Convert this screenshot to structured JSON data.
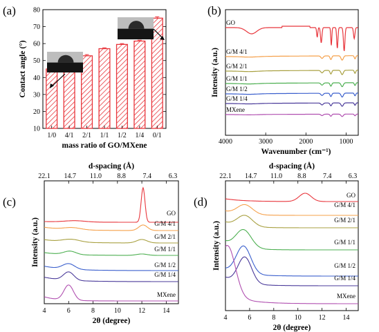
{
  "panels": {
    "a": {
      "label": "(a)"
    },
    "b": {
      "label": "(b)"
    },
    "c": {
      "label": "(c)"
    },
    "d": {
      "label": "(d)"
    }
  },
  "chart_data": [
    {
      "id": "a",
      "type": "bar",
      "categories": [
        "1/0",
        "4/1",
        "2/1",
        "1/1",
        "1/2",
        "1/4",
        "0/1"
      ],
      "values": [
        45.0,
        50.0,
        52.8,
        57.0,
        59.5,
        61.5,
        75.0
      ],
      "errors": [
        0.6,
        0.6,
        0.7,
        0.5,
        0.5,
        0.5,
        0.8
      ],
      "xlabel": "mass ratio of GO/MXene",
      "ylabel": "Contact angle (°)",
      "ylim": [
        10,
        80
      ],
      "yticks": [
        "10",
        "20",
        "30",
        "40",
        "50",
        "60",
        "70",
        "80"
      ],
      "bar_color": "#e8353b",
      "hatch": "diagonal"
    },
    {
      "id": "b",
      "type": "line",
      "xlabel": "Wavenumber (cm⁻¹)",
      "ylabel": "Intensity (a.u.)",
      "xlim": [
        4000,
        700
      ],
      "xticks": [
        "4000",
        "3000",
        "2000",
        "1000"
      ],
      "series": [
        {
          "name": "GO",
          "color": "#e8353b"
        },
        {
          "name": "G/M 4/1",
          "color": "#f5a04a"
        },
        {
          "name": "G/M 2/1",
          "color": "#a8a040"
        },
        {
          "name": "G/M 1/1",
          "color": "#4caf50"
        },
        {
          "name": "G/M 1/2",
          "color": "#3a5fcd"
        },
        {
          "name": "G/M 1/4",
          "color": "#4a3a9a"
        },
        {
          "name": "MXene",
          "color": "#b04fb0"
        }
      ]
    },
    {
      "id": "c",
      "type": "line",
      "xlabel": "2θ (degree)",
      "ylabel": "Intensity (a.u.)",
      "top_axis_label": "d-spacing (Å)",
      "top_ticks": [
        "22.1",
        "14.7",
        "11.0",
        "8.8",
        "7.4",
        "6.3"
      ],
      "xlim": [
        4,
        15
      ],
      "xticks": [
        "4",
        "6",
        "8",
        "10",
        "12",
        "14"
      ],
      "series": [
        {
          "name": "GO",
          "color": "#e8353b",
          "peak": 12.1
        },
        {
          "name": "G/M 4/1",
          "color": "#f5a04a",
          "peak": 12.1
        },
        {
          "name": "G/M 2/1",
          "color": "#a8a040",
          "peak": 12.0
        },
        {
          "name": "G/M 1/1",
          "color": "#4caf50",
          "peak": 6.1
        },
        {
          "name": "G/M 1/2",
          "color": "#3a5fcd",
          "peak": 6.0
        },
        {
          "name": "G/M 1/4",
          "color": "#4a3a9a",
          "peak": 6.0
        },
        {
          "name": "MXene",
          "color": "#b04fb0",
          "peak": 6.0
        }
      ]
    },
    {
      "id": "d",
      "type": "line",
      "xlabel": "2θ (degree)",
      "ylabel": "Intensity (a.u.)",
      "top_axis_label": "d-spacing (Å)",
      "top_ticks": [
        "22.1",
        "14.7",
        "11.0",
        "8.8",
        "7.4",
        "6.3"
      ],
      "xlim": [
        4,
        15
      ],
      "xticks": [
        "4",
        "6",
        "8",
        "10",
        "12",
        "14"
      ],
      "series": [
        {
          "name": "GO",
          "color": "#e8353b",
          "peak": 10.6
        },
        {
          "name": "G/M 4/1",
          "color": "#f5a04a",
          "peak": 5.6
        },
        {
          "name": "G/M 2/1",
          "color": "#a8a040",
          "peak": 5.6
        },
        {
          "name": "G/M 1/1",
          "color": "#4caf50",
          "peak": 5.5
        },
        {
          "name": "G/M 1/2",
          "color": "#3a5fcd",
          "peak": 5.5
        },
        {
          "name": "G/M 1/4",
          "color": "#4a3a9a",
          "peak": 5.6
        },
        {
          "name": "MXene",
          "color": "#b04fb0",
          "peak": 4.2
        }
      ]
    }
  ]
}
